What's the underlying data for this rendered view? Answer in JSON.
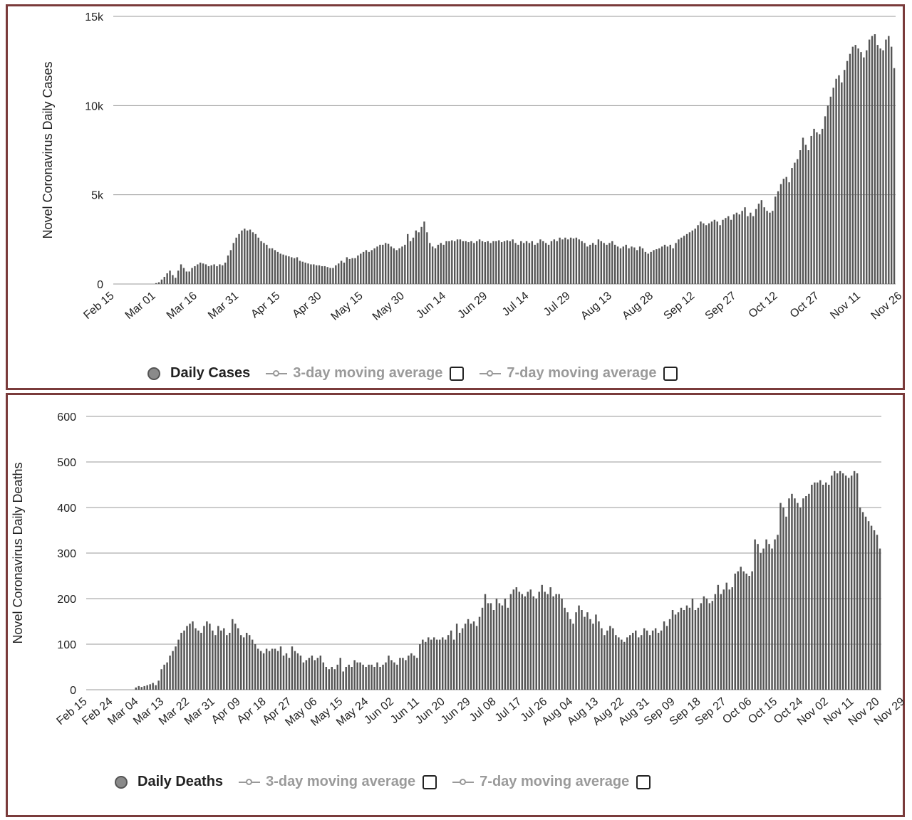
{
  "colors": {
    "bar": "#555555",
    "grid": "#999999",
    "frame": "#7a3b3b"
  },
  "chart_data": [
    {
      "type": "bar",
      "ylabel": "Novel Coronavirus Daily Cases",
      "ylim": [
        0,
        15000
      ],
      "yticks": [
        0,
        5000,
        10000,
        15000
      ],
      "ytick_labels": [
        "0",
        "5k",
        "10k",
        "15k"
      ],
      "x_tick_labels": [
        "Feb 15",
        "Mar 01",
        "Mar 16",
        "Mar 31",
        "Apr 15",
        "Apr 30",
        "May 15",
        "May 30",
        "Jun 14",
        "Jun 29",
        "Jul 14",
        "Jul 29",
        "Aug 13",
        "Aug 28",
        "Sep 12",
        "Sep 27",
        "Oct 12",
        "Oct 27",
        "Nov 11",
        "Nov 26"
      ],
      "x_tick_interval_days": 15,
      "series": [
        {
          "name": "Daily Cases",
          "x_start": "Feb 15",
          "values": [
            0,
            0,
            0,
            0,
            0,
            0,
            0,
            0,
            0,
            0,
            0,
            0,
            0,
            0,
            0,
            50,
            100,
            250,
            400,
            600,
            750,
            500,
            350,
            750,
            1100,
            900,
            700,
            700,
            900,
            1000,
            1100,
            1200,
            1150,
            1100,
            1000,
            1050,
            1100,
            1000,
            1100,
            1050,
            1200,
            1600,
            1900,
            2300,
            2600,
            2800,
            3000,
            3100,
            3000,
            3050,
            2900,
            2800,
            2600,
            2400,
            2300,
            2200,
            2000,
            2000,
            1900,
            1800,
            1700,
            1650,
            1600,
            1550,
            1500,
            1450,
            1500,
            1300,
            1250,
            1200,
            1150,
            1100,
            1100,
            1050,
            1050,
            1000,
            1000,
            950,
            900,
            900,
            1050,
            1150,
            1300,
            1200,
            1500,
            1400,
            1450,
            1450,
            1600,
            1700,
            1800,
            1900,
            1800,
            1900,
            2000,
            2100,
            2200,
            2200,
            2300,
            2250,
            2100,
            2000,
            1900,
            2000,
            2100,
            2200,
            2800,
            2400,
            2600,
            3000,
            2900,
            3200,
            3500,
            2900,
            2300,
            2100,
            2000,
            2200,
            2300,
            2200,
            2400,
            2400,
            2450,
            2400,
            2500,
            2500,
            2400,
            2400,
            2350,
            2400,
            2300,
            2400,
            2500,
            2400,
            2350,
            2400,
            2300,
            2400,
            2400,
            2450,
            2350,
            2400,
            2450,
            2400,
            2500,
            2300,
            2200,
            2400,
            2300,
            2400,
            2300,
            2400,
            2200,
            2300,
            2500,
            2400,
            2300,
            2200,
            2400,
            2500,
            2400,
            2600,
            2500,
            2600,
            2500,
            2600,
            2550,
            2600,
            2500,
            2400,
            2300,
            2100,
            2200,
            2300,
            2200,
            2500,
            2400,
            2300,
            2200,
            2300,
            2400,
            2200,
            2100,
            2000,
            2100,
            2200,
            2000,
            2100,
            2050,
            1900,
            2100,
            2000,
            1800,
            1700,
            1800,
            1900,
            1950,
            2000,
            2100,
            2200,
            2100,
            2200,
            2000,
            2300,
            2500,
            2600,
            2700,
            2800,
            2900,
            3000,
            3100,
            3300,
            3500,
            3400,
            3300,
            3400,
            3500,
            3600,
            3500,
            3300,
            3600,
            3700,
            3800,
            3600,
            3900,
            4000,
            3900,
            4100,
            4300,
            3800,
            4000,
            3800,
            4200,
            4500,
            4700,
            4300,
            4100,
            4000,
            4100,
            4900,
            5200,
            5600,
            5900,
            6000,
            5700,
            6500,
            6800,
            7000,
            7500,
            8200,
            7800,
            7500,
            8300,
            8700,
            8500,
            8400,
            8700,
            9400,
            10000,
            10500,
            11000,
            11500,
            11700,
            11300,
            12000,
            12500,
            12900,
            13300,
            13400,
            13200,
            13000,
            12700,
            13100,
            13700,
            13900,
            14000,
            13400,
            13200,
            13100,
            13700,
            13900,
            13300,
            12100
          ]
        }
      ]
    },
    {
      "type": "bar",
      "ylabel": "Novel Coronavirus Daily Deaths",
      "ylim": [
        0,
        600
      ],
      "yticks": [
        0,
        100,
        200,
        300,
        400,
        500,
        600
      ],
      "ytick_labels": [
        "0",
        "100",
        "200",
        "300",
        "400",
        "500",
        "600"
      ],
      "x_tick_labels": [
        "Feb 15",
        "Feb 24",
        "Mar 04",
        "Mar 13",
        "Mar 22",
        "Mar 31",
        "Apr 09",
        "Apr 18",
        "Apr 27",
        "May 06",
        "May 15",
        "May 24",
        "Jun 02",
        "Jun 11",
        "Jun 20",
        "Jun 29",
        "Jul 08",
        "Jul 17",
        "Jul 26",
        "Aug 04",
        "Aug 13",
        "Aug 22",
        "Aug 31",
        "Sep 09",
        "Sep 18",
        "Sep 27",
        "Oct 06",
        "Oct 15",
        "Oct 24",
        "Nov 02",
        "Nov 11",
        "Nov 20",
        "Nov 29"
      ],
      "x_tick_interval_days": 9,
      "series": [
        {
          "name": "Daily Deaths",
          "x_start": "Feb 15",
          "values": [
            0,
            0,
            0,
            0,
            0,
            0,
            0,
            0,
            0,
            0,
            0,
            0,
            0,
            0,
            0,
            0,
            0,
            5,
            8,
            6,
            8,
            10,
            12,
            15,
            10,
            20,
            45,
            55,
            60,
            75,
            85,
            95,
            110,
            125,
            130,
            140,
            145,
            150,
            135,
            130,
            125,
            140,
            150,
            145,
            130,
            120,
            140,
            130,
            135,
            120,
            125,
            155,
            145,
            135,
            120,
            115,
            125,
            120,
            110,
            100,
            90,
            85,
            80,
            90,
            85,
            90,
            90,
            85,
            95,
            75,
            80,
            70,
            95,
            85,
            80,
            75,
            60,
            65,
            70,
            75,
            65,
            70,
            75,
            60,
            50,
            45,
            50,
            45,
            55,
            70,
            40,
            50,
            55,
            50,
            65,
            60,
            60,
            55,
            50,
            55,
            55,
            50,
            60,
            50,
            55,
            60,
            75,
            65,
            60,
            55,
            70,
            70,
            65,
            75,
            80,
            75,
            70,
            100,
            110,
            105,
            115,
            110,
            115,
            110,
            110,
            115,
            110,
            120,
            130,
            110,
            145,
            125,
            135,
            145,
            155,
            145,
            150,
            140,
            160,
            180,
            210,
            190,
            190,
            175,
            200,
            190,
            185,
            200,
            180,
            210,
            220,
            225,
            215,
            210,
            205,
            215,
            220,
            205,
            200,
            215,
            230,
            215,
            210,
            225,
            205,
            210,
            210,
            200,
            180,
            170,
            155,
            145,
            170,
            185,
            175,
            160,
            170,
            155,
            145,
            165,
            150,
            135,
            120,
            130,
            140,
            135,
            120,
            115,
            110,
            105,
            115,
            120,
            125,
            130,
            115,
            120,
            135,
            130,
            120,
            130,
            135,
            125,
            130,
            150,
            140,
            155,
            175,
            165,
            170,
            180,
            175,
            185,
            180,
            200,
            175,
            180,
            190,
            205,
            200,
            190,
            195,
            210,
            230,
            210,
            220,
            235,
            220,
            225,
            255,
            260,
            270,
            260,
            255,
            250,
            260,
            330,
            320,
            300,
            310,
            330,
            320,
            310,
            330,
            340,
            410,
            400,
            380,
            420,
            430,
            420,
            410,
            400,
            420,
            425,
            430,
            450,
            455,
            455,
            460,
            450,
            455,
            450,
            470,
            480,
            475,
            480,
            475,
            470,
            465,
            470,
            480,
            475,
            400,
            390,
            380,
            370,
            360,
            350,
            340,
            310
          ]
        }
      ]
    }
  ],
  "legends": [
    {
      "main": "Daily Cases",
      "ma3": "3-day moving average",
      "ma7": "7-day moving average"
    },
    {
      "main": "Daily Deaths",
      "ma3": "3-day moving average",
      "ma7": "7-day moving average"
    }
  ]
}
